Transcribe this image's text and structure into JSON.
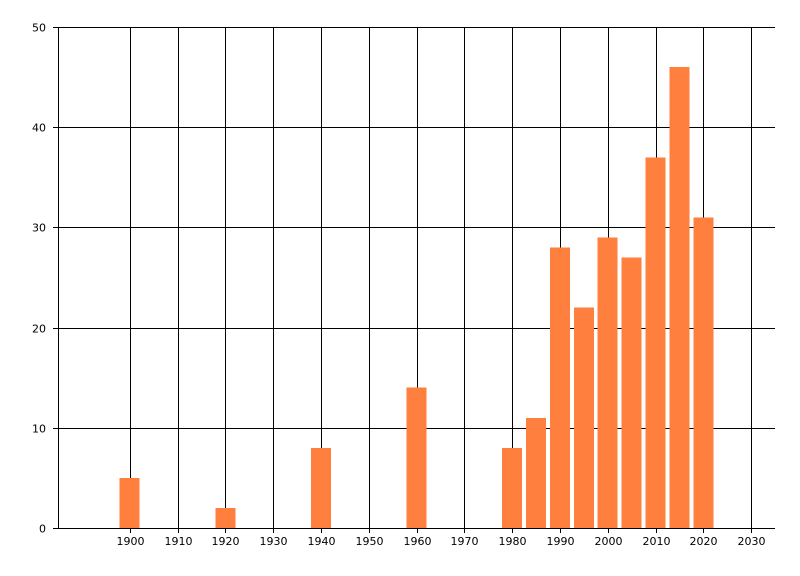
{
  "chart_data": {
    "type": "bar",
    "title": "",
    "xlabel": "",
    "ylabel": "",
    "grid": true,
    "bar_color": "#FF7F3F",
    "x": [
      1900,
      1920,
      1940,
      1960,
      1980,
      1985,
      1990,
      1995,
      2000,
      2005,
      2010,
      2015,
      2020
    ],
    "values": [
      5,
      2,
      8,
      14,
      8,
      11,
      28,
      22,
      29,
      27,
      37,
      46,
      31
    ],
    "xlim": [
      1885,
      2035
    ],
    "ylim": [
      0,
      50
    ],
    "xticks": [
      1900,
      1910,
      1920,
      1930,
      1940,
      1950,
      1960,
      1970,
      1980,
      1990,
      2000,
      2010,
      2020,
      2030
    ],
    "yticks": [
      0,
      10,
      20,
      30,
      40,
      50
    ]
  }
}
